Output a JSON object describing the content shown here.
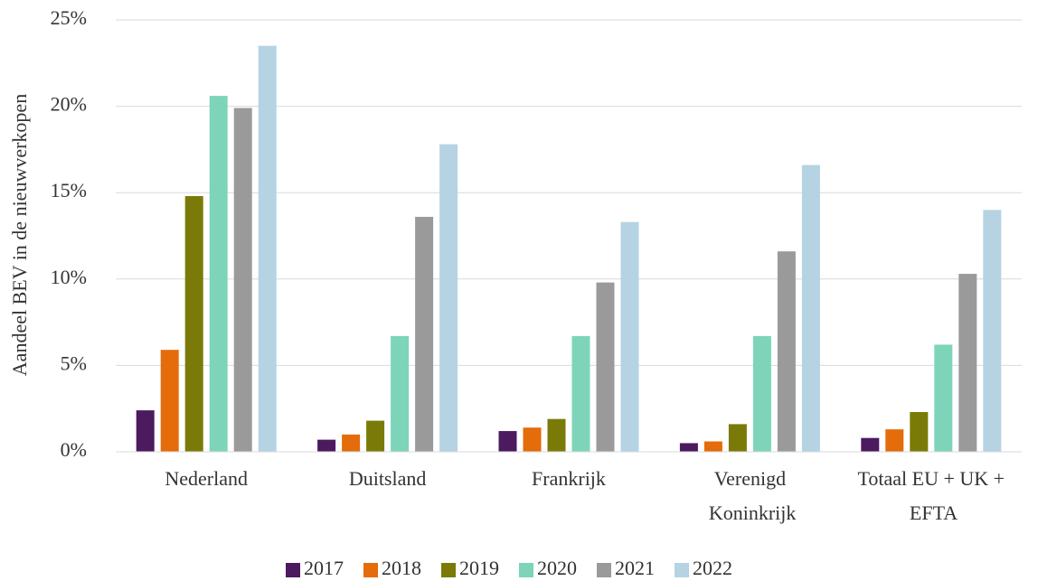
{
  "chart_data": {
    "type": "bar",
    "y_label": "Aandeel BEV in de nieuwverkopen",
    "categories": [
      "Nederland",
      "Duitsland",
      "Frankrijk",
      "Verenigd Koninkrijk",
      "Totaal EU + UK + EFTA"
    ],
    "series": [
      {
        "name": "2017",
        "color": "#4b1a5f",
        "values": [
          2.4,
          0.7,
          1.2,
          0.5,
          0.8
        ]
      },
      {
        "name": "2018",
        "color": "#e46c0a",
        "values": [
          5.9,
          1.0,
          1.4,
          0.6,
          1.3
        ]
      },
      {
        "name": "2019",
        "color": "#7a7a08",
        "values": [
          14.8,
          1.8,
          1.9,
          1.6,
          2.3
        ]
      },
      {
        "name": "2020",
        "color": "#7dd4b9",
        "values": [
          20.6,
          6.7,
          6.7,
          6.7,
          6.2
        ]
      },
      {
        "name": "2021",
        "color": "#9a9a9a",
        "values": [
          19.9,
          13.6,
          9.8,
          11.6,
          10.3
        ]
      },
      {
        "name": "2022",
        "color": "#b5d3e3",
        "values": [
          23.5,
          17.8,
          13.3,
          16.6,
          14.0
        ]
      }
    ],
    "ylim": [
      0,
      25
    ],
    "yticks": [
      {
        "value": 0,
        "label": "0%"
      },
      {
        "value": 5,
        "label": "5%"
      },
      {
        "value": 10,
        "label": "10%"
      },
      {
        "value": 15,
        "label": "15%"
      },
      {
        "value": 20,
        "label": "20%"
      },
      {
        "value": 25,
        "label": "25%"
      }
    ],
    "grid": true,
    "legend": "bottom"
  }
}
